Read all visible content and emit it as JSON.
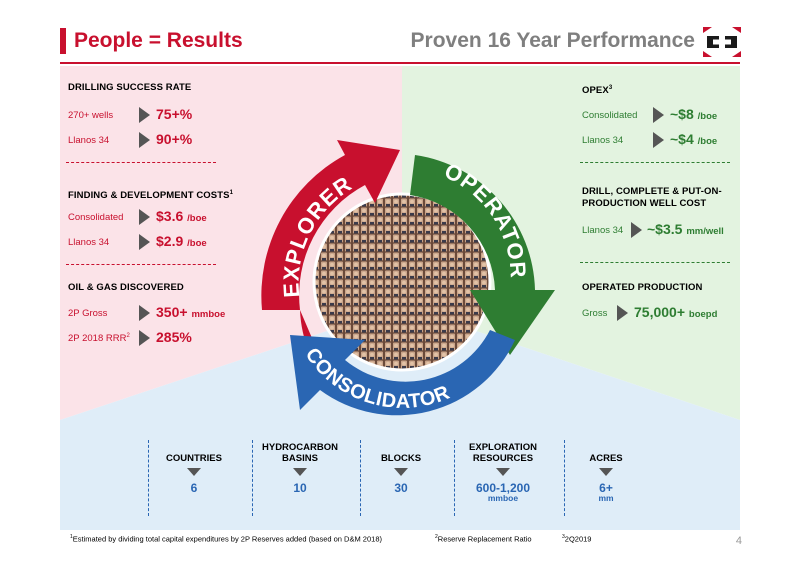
{
  "header": {
    "title_left": "People = Results",
    "title_right": "Proven 16 Year Performance"
  },
  "left": {
    "drilling": {
      "title": "DRILLING SUCCESS RATE",
      "rows": [
        {
          "label": "270+ wells",
          "value": "75+%",
          "unit": ""
        },
        {
          "label": "Llanos 34",
          "value": "90+%",
          "unit": ""
        }
      ]
    },
    "fd": {
      "title": "FINDING & DEVELOPMENT COSTS",
      "sup": "1",
      "rows": [
        {
          "label": "Consolidated",
          "value": "$3.6",
          "unit": "/boe"
        },
        {
          "label": "Llanos 34",
          "value": "$2.9",
          "unit": "/boe"
        }
      ]
    },
    "oil": {
      "title": "OIL & GAS  DISCOVERED",
      "rows": [
        {
          "label": "2P Gross",
          "value": "350+",
          "unit": "mmboe"
        },
        {
          "label": "2P 2018 RRR",
          "label_sup": "2",
          "value": "285%",
          "unit": ""
        }
      ]
    }
  },
  "right": {
    "opex": {
      "title": "OPEX",
      "sup": "3",
      "rows": [
        {
          "label": "Consolidated",
          "value": "~$8",
          "unit": "/boe"
        },
        {
          "label": "Llanos 34",
          "value": "~$4",
          "unit": "/boe"
        }
      ]
    },
    "drill": {
      "title_line1": "DRILL, COMPLETE & PUT-ON-",
      "title_line2": "PRODUCTION WELL COST",
      "rows": [
        {
          "label": "Llanos 34",
          "value": "~$3.5",
          "unit": "mm/well"
        }
      ]
    },
    "production": {
      "title": "OPERATED PRODUCTION",
      "rows": [
        {
          "label": "Gross",
          "value": "75,000+",
          "unit": "boepd"
        }
      ]
    }
  },
  "cycle": {
    "explorer": "EXPLORER",
    "operator": "OPERATOR",
    "consolidator": "CONSOLIDATOR"
  },
  "stats": [
    {
      "title_line1": "COUNTRIES",
      "title_line2": "",
      "value": "6",
      "unit": ""
    },
    {
      "title_line1": "HYDROCARBON",
      "title_line2": "BASINS",
      "value": "10",
      "unit": ""
    },
    {
      "title_line1": "BLOCKS",
      "title_line2": "",
      "value": "30",
      "unit": ""
    },
    {
      "title_line1": "EXPLORATION",
      "title_line2": "RESOURCES",
      "value": "600-1,200",
      "unit": "mmboe"
    },
    {
      "title_line1": "ACRES",
      "title_line2": "",
      "value": "6+",
      "unit": "mm"
    }
  ],
  "footnotes": {
    "f1_num": "1",
    "f1": "Estimated by dividing total capital expenditures by 2P Reserves added (based on D&M 2018)",
    "f2_num": "2",
    "f2": "Reserve Replacement Ratio",
    "f3_num": "3",
    "f3": "2Q2019"
  },
  "page_number": "4",
  "colors": {
    "red": "#c8102e",
    "green": "#2e7d32",
    "blue": "#2a66b3",
    "bg_pink": "#fbe3e8",
    "bg_green": "#e3f3e0",
    "bg_blue": "#dfedf8"
  }
}
